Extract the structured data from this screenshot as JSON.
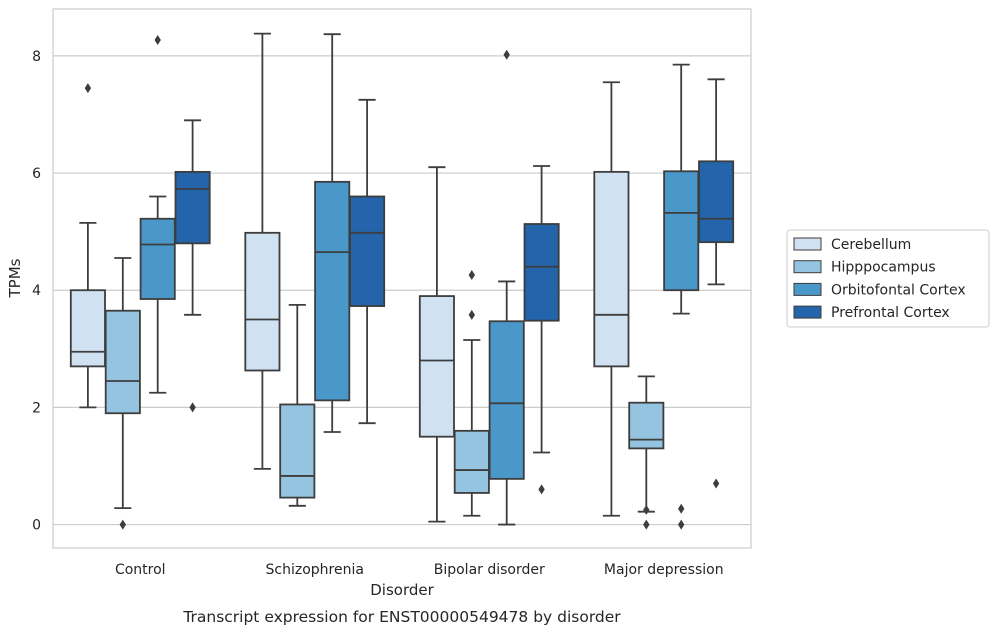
{
  "caption": "Transcript expression for ENST00000549478 by disorder",
  "chart_data": {
    "type": "boxplot",
    "xlabel": "Disorder",
    "ylabel": "TPMs",
    "ylim": [
      -0.4,
      8.8
    ],
    "yticks": [
      0,
      2,
      4,
      6,
      8
    ],
    "categories": [
      "Control",
      "Schizophrenia",
      "Bipolar disorder",
      "Major depression"
    ],
    "grid": "horizontal",
    "legend_position": "right",
    "series": [
      {
        "name": "Cerebellum",
        "color": "#d0e1f2",
        "boxes": [
          {
            "whisker_low": 2.0,
            "q1": 2.7,
            "median": 2.95,
            "q3": 4.0,
            "whisker_high": 5.15,
            "outliers": [
              7.45
            ]
          },
          {
            "whisker_low": 0.95,
            "q1": 2.63,
            "median": 3.5,
            "q3": 4.98,
            "whisker_high": 8.38,
            "outliers": []
          },
          {
            "whisker_low": 0.05,
            "q1": 1.5,
            "median": 2.8,
            "q3": 3.9,
            "whisker_high": 6.1,
            "outliers": []
          },
          {
            "whisker_low": 0.15,
            "q1": 2.7,
            "median": 3.58,
            "q3": 6.02,
            "whisker_high": 7.55,
            "outliers": []
          }
        ]
      },
      {
        "name": "Hipppocampus",
        "color": "#94c4df",
        "boxes": [
          {
            "whisker_low": 0.28,
            "q1": 1.9,
            "median": 2.45,
            "q3": 3.65,
            "whisker_high": 4.55,
            "outliers": [
              0.0
            ]
          },
          {
            "whisker_low": 0.32,
            "q1": 0.46,
            "median": 0.83,
            "q3": 2.05,
            "whisker_high": 3.75,
            "outliers": []
          },
          {
            "whisker_low": 0.15,
            "q1": 0.54,
            "median": 0.93,
            "q3": 1.6,
            "whisker_high": 3.15,
            "outliers": [
              3.58,
              4.26
            ]
          },
          {
            "whisker_low": 0.22,
            "q1": 1.3,
            "median": 1.45,
            "q3": 2.08,
            "whisker_high": 2.53,
            "outliers": [
              0.25,
              0.0
            ]
          }
        ]
      },
      {
        "name": "Orbitofontal Cortex",
        "color": "#4a98c9",
        "boxes": [
          {
            "whisker_low": 2.25,
            "q1": 3.85,
            "median": 4.78,
            "q3": 5.22,
            "whisker_high": 5.6,
            "outliers": [
              8.27
            ]
          },
          {
            "whisker_low": 1.58,
            "q1": 2.12,
            "median": 4.65,
            "q3": 5.85,
            "whisker_high": 8.37,
            "outliers": []
          },
          {
            "whisker_low": 0.0,
            "q1": 0.78,
            "median": 2.07,
            "q3": 3.47,
            "whisker_high": 4.15,
            "outliers": [
              8.02
            ]
          },
          {
            "whisker_low": 3.6,
            "q1": 4.0,
            "median": 5.32,
            "q3": 6.03,
            "whisker_high": 7.85,
            "outliers": [
              0.0,
              0.27
            ]
          }
        ]
      },
      {
        "name": "Prefrontal Cortex",
        "color": "#2464ab",
        "boxes": [
          {
            "whisker_low": 3.58,
            "q1": 4.8,
            "median": 5.73,
            "q3": 6.02,
            "whisker_high": 6.9,
            "outliers": [
              2.0
            ]
          },
          {
            "whisker_low": 1.73,
            "q1": 3.73,
            "median": 4.98,
            "q3": 5.6,
            "whisker_high": 7.25,
            "outliers": []
          },
          {
            "whisker_low": 1.23,
            "q1": 3.48,
            "median": 4.4,
            "q3": 5.13,
            "whisker_high": 6.12,
            "outliers": [
              0.6
            ]
          },
          {
            "whisker_low": 4.1,
            "q1": 4.82,
            "median": 5.22,
            "q3": 6.2,
            "whisker_high": 7.6,
            "outliers": [
              0.7
            ]
          }
        ]
      }
    ]
  }
}
